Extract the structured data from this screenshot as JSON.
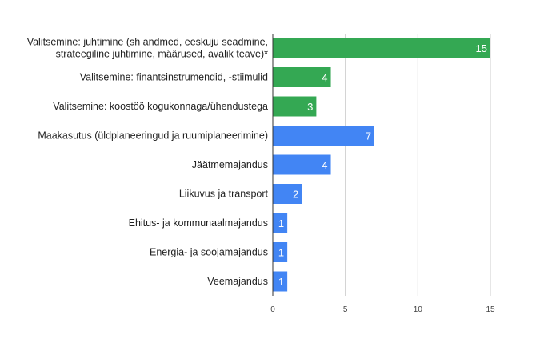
{
  "chart_data": {
    "type": "bar",
    "orientation": "horizontal",
    "title": "",
    "xlabel": "",
    "ylabel": "",
    "xlim": [
      0,
      15
    ],
    "xticks": [
      0,
      5,
      10,
      15
    ],
    "grid": true,
    "categories": [
      [
        "Valitsemine: juhtimine (sh andmed, eeskuju seadmine,",
        "strateegiline juhtimine, määrused, avalik teave)*"
      ],
      [
        "Valitsemine: finantsinstrumendid, -stiimulid"
      ],
      [
        "Valitsemine: koostöö kogukonnaga/ühendustega"
      ],
      [
        "Maakasutus (üldplaneeringud ja ruumiplaneerimine)"
      ],
      [
        "Jäätmemajandus"
      ],
      [
        "Liikuvus ja transport"
      ],
      [
        "Ehitus- ja kommunaalmajandus"
      ],
      [
        "Energia- ja soojamajandus"
      ],
      [
        "Veemajandus"
      ]
    ],
    "values": [
      15,
      4,
      3,
      7,
      4,
      2,
      1,
      1,
      1
    ],
    "colors": [
      "#34a853",
      "#34a853",
      "#34a853",
      "#4285f4",
      "#4285f4",
      "#4285f4",
      "#4285f4",
      "#4285f4",
      "#4285f4"
    ],
    "gridline_color": "#cccccc",
    "axis_color": "#333333"
  }
}
